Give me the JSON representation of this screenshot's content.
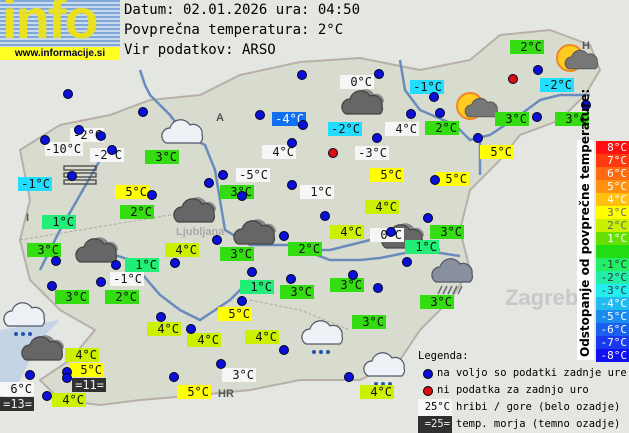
{
  "logo": {
    "text": "info",
    "url": "www.informacije.si"
  },
  "header": {
    "date_line": "Datum: 02.01.2026 ura: 04:50",
    "avg_line": "Povprečna temperatura: 2°C",
    "source_line": "Vir podatkov: ARSO"
  },
  "colors": {
    "white": "#f6f6f6",
    "cyan": "#22ddff",
    "blue": "#1070f0",
    "teal": "#22ee77",
    "green": "#33dd11",
    "lime": "#ccf000",
    "yellow": "#ffff00",
    "dark": "#303030",
    "station": "#0a10d8",
    "no_data": "#d81010"
  },
  "stations": [
    {
      "t": "2°C",
      "c": "green"
    },
    {
      "t": "0°C",
      "c": "white"
    },
    {
      "t": "-1°C",
      "c": "cyan"
    },
    {
      "t": "-2°C",
      "c": "cyan"
    },
    {
      "t": "-4°C",
      "c": "blue"
    },
    {
      "t": "-2°C",
      "c": "cyan"
    },
    {
      "t": "4°C",
      "c": "white"
    },
    {
      "t": "2°C",
      "c": "green"
    },
    {
      "t": "3°C",
      "c": "green"
    },
    {
      "t": "3°C",
      "c": "green"
    },
    {
      "t": "-2°C",
      "c": "white"
    },
    {
      "t": "-10°C",
      "c": "white"
    },
    {
      "t": "-2°C",
      "c": "white"
    },
    {
      "t": "3°C",
      "c": "green"
    },
    {
      "t": "4°C",
      "c": "white"
    },
    {
      "t": "-3°C",
      "c": "white"
    },
    {
      "t": "5°C",
      "c": "yellow"
    },
    {
      "t": "-1°C",
      "c": "cyan"
    },
    {
      "t": "5°C",
      "c": "yellow"
    },
    {
      "t": "-5°C",
      "c": "white"
    },
    {
      "t": "3°C",
      "c": "green"
    },
    {
      "t": "1°C",
      "c": "white"
    },
    {
      "t": "5°C",
      "c": "yellow"
    },
    {
      "t": "5°C",
      "c": "yellow"
    },
    {
      "t": "2°C",
      "c": "green"
    },
    {
      "t": "4°C",
      "c": "lime"
    },
    {
      "t": "1°C",
      "c": "teal"
    },
    {
      "t": "4°C",
      "c": "lime"
    },
    {
      "t": "0°C",
      "c": "white"
    },
    {
      "t": "3°C",
      "c": "green"
    },
    {
      "t": "3°C",
      "c": "green"
    },
    {
      "t": "4°C",
      "c": "lime"
    },
    {
      "t": "3°C",
      "c": "green"
    },
    {
      "t": "2°C",
      "c": "green"
    },
    {
      "t": "1°C",
      "c": "teal"
    },
    {
      "t": "1°C",
      "c": "teal"
    },
    {
      "t": "-1°C",
      "c": "white"
    },
    {
      "t": "1°C",
      "c": "teal"
    },
    {
      "t": "3°C",
      "c": "green"
    },
    {
      "t": "3°C",
      "c": "green"
    },
    {
      "t": "3°C",
      "c": "green"
    },
    {
      "t": "2°C",
      "c": "green"
    },
    {
      "t": "3°C",
      "c": "green"
    },
    {
      "t": "5°C",
      "c": "yellow"
    },
    {
      "t": "4°C",
      "c": "lime"
    },
    {
      "t": "4°C",
      "c": "lime"
    },
    {
      "t": "4°C",
      "c": "lime"
    },
    {
      "t": "3°C",
      "c": "green"
    },
    {
      "t": "4°C",
      "c": "lime"
    },
    {
      "t": "5°C",
      "c": "yellow"
    },
    {
      "t": "=11=",
      "c": "dark"
    },
    {
      "t": "6°C",
      "c": "white"
    },
    {
      "t": "=13=",
      "c": "dark"
    },
    {
      "t": "4°C",
      "c": "lime"
    },
    {
      "t": "3°C",
      "c": "white"
    },
    {
      "t": "5°C",
      "c": "yellow"
    },
    {
      "t": "4°C",
      "c": "lime"
    }
  ],
  "map_labels": {
    "zagreb": "Zagreb",
    "ljubljana": "Ljubljana",
    "austria": "A",
    "italy": "I",
    "hungary": "H",
    "croatia": "HR"
  },
  "weather_icons": [
    "cloud",
    "overcast",
    "overcast",
    "overcast",
    "overcast",
    "overcast",
    "overcast",
    "sun-cloud",
    "sun-cloud",
    "rain",
    "light-rain",
    "light-rain",
    "light-rain",
    "fog"
  ],
  "scale": {
    "title": "Odstopanje od povprečne temperature:",
    "steps": [
      {
        "t": "8°C",
        "c": "#ff1010"
      },
      {
        "t": "7°C",
        "c": "#ff3a10"
      },
      {
        "t": "6°C",
        "c": "#ff6a10"
      },
      {
        "t": "5°C",
        "c": "#ff9010"
      },
      {
        "t": "4°C",
        "c": "#ffc010"
      },
      {
        "t": "3°C",
        "c": "#ffff00"
      },
      {
        "t": "2°C",
        "c": "#c8f000"
      },
      {
        "t": "1°C",
        "c": "#66e000"
      },
      {
        "t": "",
        "c": "#22dd11"
      },
      {
        "t": "-1°C",
        "c": "#22ee66"
      },
      {
        "t": "-2°C",
        "c": "#22eeaa"
      },
      {
        "t": "-3°C",
        "c": "#22eeee"
      },
      {
        "t": "-4°C",
        "c": "#22bbf0"
      },
      {
        "t": "-5°C",
        "c": "#1a8cf0"
      },
      {
        "t": "-6°C",
        "c": "#1a60f0"
      },
      {
        "t": "-7°C",
        "c": "#1a38f0"
      },
      {
        "t": "-8°C",
        "c": "#1010f0"
      }
    ]
  },
  "legend": {
    "title": "Legenda:",
    "available": "na voljo so podatki zadnje ure",
    "no_data": "ni podatka za zadnjo uro",
    "mountain_sample": "25°C",
    "mountain": "hribi / gore (belo ozadje)",
    "sea_sample": "=25=",
    "sea": "temp. morja (temno ozadje)"
  }
}
